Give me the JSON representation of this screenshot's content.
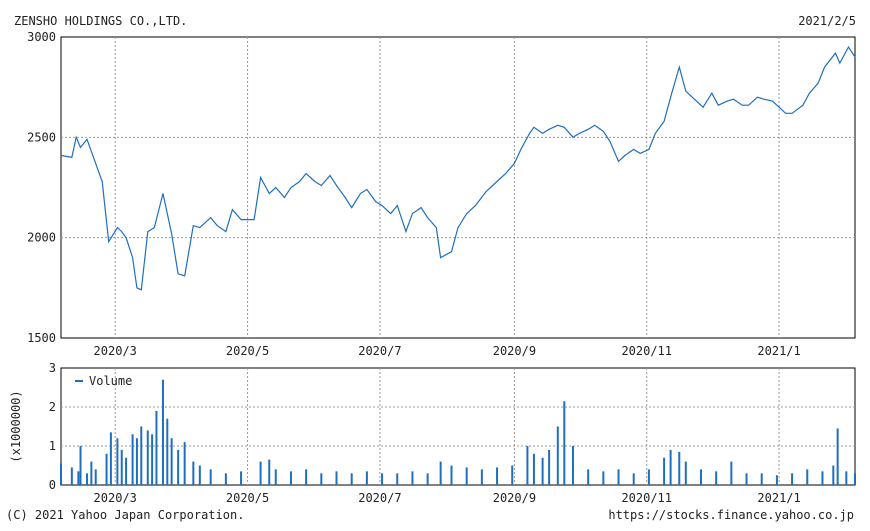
{
  "header": {
    "company": "ZENSHO HOLDINGS CO.,LTD.",
    "date": "2021/2/5"
  },
  "footer": {
    "copyright": "(C) 2021 Yahoo Japan Corporation.",
    "url": "https://stocks.finance.yahoo.co.jp"
  },
  "colors": {
    "line": "#1f6fc0",
    "bar": "#1f6fc0",
    "grid": "#9a9a9a",
    "axis": "#000000"
  },
  "chart_data": [
    {
      "type": "line",
      "title": "",
      "xlabel": "",
      "ylabel": "",
      "grid": true,
      "ylim": [
        1500,
        3000
      ],
      "yticks": [
        1500,
        2000,
        2500,
        3000
      ],
      "xticks": [
        "2020/3",
        "2020/5",
        "2020/7",
        "2020/9",
        "2020/11",
        "2021/1"
      ],
      "x_range": [
        "2020-02-05",
        "2021-02-05"
      ],
      "series": [
        {
          "values": [
            [
              "2020-02-05",
              2410
            ],
            [
              "2020-02-10",
              2400
            ],
            [
              "2020-02-12",
              2500
            ],
            [
              "2020-02-14",
              2450
            ],
            [
              "2020-02-17",
              2490
            ],
            [
              "2020-02-20",
              2400
            ],
            [
              "2020-02-24",
              2280
            ],
            [
              "2020-02-27",
              1980
            ],
            [
              "2020-03-02",
              2050
            ],
            [
              "2020-03-04",
              2030
            ],
            [
              "2020-03-06",
              2000
            ],
            [
              "2020-03-09",
              1900
            ],
            [
              "2020-03-11",
              1750
            ],
            [
              "2020-03-13",
              1740
            ],
            [
              "2020-03-16",
              2030
            ],
            [
              "2020-03-19",
              2050
            ],
            [
              "2020-03-23",
              2220
            ],
            [
              "2020-03-25",
              2120
            ],
            [
              "2020-03-27",
              2020
            ],
            [
              "2020-03-30",
              1820
            ],
            [
              "2020-04-02",
              1810
            ],
            [
              "2020-04-06",
              2060
            ],
            [
              "2020-04-09",
              2050
            ],
            [
              "2020-04-14",
              2100
            ],
            [
              "2020-04-17",
              2060
            ],
            [
              "2020-04-21",
              2030
            ],
            [
              "2020-04-24",
              2140
            ],
            [
              "2020-04-28",
              2090
            ],
            [
              "2020-05-01",
              2090
            ],
            [
              "2020-05-04",
              2090
            ],
            [
              "2020-05-07",
              2300
            ],
            [
              "2020-05-11",
              2220
            ],
            [
              "2020-05-14",
              2250
            ],
            [
              "2020-05-18",
              2200
            ],
            [
              "2020-05-21",
              2250
            ],
            [
              "2020-05-25",
              2280
            ],
            [
              "2020-05-28",
              2320
            ],
            [
              "2020-06-01",
              2280
            ],
            [
              "2020-06-04",
              2260
            ],
            [
              "2020-06-08",
              2310
            ],
            [
              "2020-06-11",
              2260
            ],
            [
              "2020-06-15",
              2200
            ],
            [
              "2020-06-18",
              2150
            ],
            [
              "2020-06-22",
              2220
            ],
            [
              "2020-06-25",
              2240
            ],
            [
              "2020-06-29",
              2180
            ],
            [
              "2020-07-02",
              2160
            ],
            [
              "2020-07-06",
              2120
            ],
            [
              "2020-07-09",
              2160
            ],
            [
              "2020-07-13",
              2030
            ],
            [
              "2020-07-16",
              2120
            ],
            [
              "2020-07-20",
              2150
            ],
            [
              "2020-07-23",
              2100
            ],
            [
              "2020-07-27",
              2050
            ],
            [
              "2020-07-29",
              1900
            ],
            [
              "2020-08-03",
              1930
            ],
            [
              "2020-08-06",
              2050
            ],
            [
              "2020-08-10",
              2120
            ],
            [
              "2020-08-14",
              2160
            ],
            [
              "2020-08-19",
              2230
            ],
            [
              "2020-08-24",
              2280
            ],
            [
              "2020-08-28",
              2320
            ],
            [
              "2020-09-01",
              2370
            ],
            [
              "2020-09-04",
              2440
            ],
            [
              "2020-09-08",
              2520
            ],
            [
              "2020-09-10",
              2550
            ],
            [
              "2020-09-14",
              2520
            ],
            [
              "2020-09-17",
              2540
            ],
            [
              "2020-09-21",
              2560
            ],
            [
              "2020-09-24",
              2550
            ],
            [
              "2020-09-28",
              2500
            ],
            [
              "2020-10-01",
              2520
            ],
            [
              "2020-10-05",
              2540
            ],
            [
              "2020-10-08",
              2560
            ],
            [
              "2020-10-12",
              2530
            ],
            [
              "2020-10-15",
              2480
            ],
            [
              "2020-10-19",
              2380
            ],
            [
              "2020-10-22",
              2410
            ],
            [
              "2020-10-26",
              2440
            ],
            [
              "2020-10-29",
              2420
            ],
            [
              "2020-11-02",
              2440
            ],
            [
              "2020-11-05",
              2520
            ],
            [
              "2020-11-09",
              2580
            ],
            [
              "2020-11-12",
              2700
            ],
            [
              "2020-11-16",
              2850
            ],
            [
              "2020-11-19",
              2730
            ],
            [
              "2020-11-24",
              2680
            ],
            [
              "2020-11-27",
              2650
            ],
            [
              "2020-12-01",
              2720
            ],
            [
              "2020-12-04",
              2660
            ],
            [
              "2020-12-08",
              2680
            ],
            [
              "2020-12-11",
              2690
            ],
            [
              "2020-12-15",
              2660
            ],
            [
              "2020-12-18",
              2660
            ],
            [
              "2020-12-22",
              2700
            ],
            [
              "2020-12-25",
              2690
            ],
            [
              "2020-12-29",
              2680
            ],
            [
              "2021-01-04",
              2620
            ],
            [
              "2021-01-07",
              2620
            ],
            [
              "2021-01-12",
              2660
            ],
            [
              "2021-01-15",
              2720
            ],
            [
              "2021-01-19",
              2770
            ],
            [
              "2021-01-22",
              2850
            ],
            [
              "2021-01-27",
              2920
            ],
            [
              "2021-01-29",
              2870
            ],
            [
              "2021-02-02",
              2950
            ],
            [
              "2021-02-05",
              2900
            ]
          ]
        }
      ]
    },
    {
      "type": "bar",
      "title": "",
      "ylabel": "(x1000000)",
      "ylim": [
        0,
        3
      ],
      "yticks": [
        0,
        1,
        2,
        3
      ],
      "legend": [
        "Volume"
      ],
      "legend_position": "top-left",
      "xticks": [
        "2020/3",
        "2020/5",
        "2020/7",
        "2020/9",
        "2020/11",
        "2021/1"
      ],
      "series": [
        {
          "name": "Volume",
          "values": [
            [
              "2020-02-05",
              0.55
            ],
            [
              "2020-02-10",
              0.45
            ],
            [
              "2020-02-13",
              0.35
            ],
            [
              "2020-02-14",
              1.0
            ],
            [
              "2020-02-17",
              0.3
            ],
            [
              "2020-02-19",
              0.6
            ],
            [
              "2020-02-21",
              0.4
            ],
            [
              "2020-02-26",
              0.8
            ],
            [
              "2020-02-28",
              1.35
            ],
            [
              "2020-03-02",
              1.2
            ],
            [
              "2020-03-04",
              0.9
            ],
            [
              "2020-03-06",
              0.7
            ],
            [
              "2020-03-09",
              1.3
            ],
            [
              "2020-03-11",
              1.2
            ],
            [
              "2020-03-13",
              1.5
            ],
            [
              "2020-03-16",
              1.4
            ],
            [
              "2020-03-18",
              1.3
            ],
            [
              "2020-03-20",
              1.9
            ],
            [
              "2020-03-23",
              2.7
            ],
            [
              "2020-03-25",
              1.7
            ],
            [
              "2020-03-27",
              1.2
            ],
            [
              "2020-03-30",
              0.9
            ],
            [
              "2020-04-02",
              1.1
            ],
            [
              "2020-04-06",
              0.6
            ],
            [
              "2020-04-09",
              0.5
            ],
            [
              "2020-04-14",
              0.4
            ],
            [
              "2020-04-21",
              0.3
            ],
            [
              "2020-04-28",
              0.35
            ],
            [
              "2020-05-07",
              0.6
            ],
            [
              "2020-05-11",
              0.65
            ],
            [
              "2020-05-14",
              0.4
            ],
            [
              "2020-05-21",
              0.35
            ],
            [
              "2020-05-28",
              0.4
            ],
            [
              "2020-06-04",
              0.3
            ],
            [
              "2020-06-11",
              0.35
            ],
            [
              "2020-06-18",
              0.3
            ],
            [
              "2020-06-25",
              0.35
            ],
            [
              "2020-07-02",
              0.3
            ],
            [
              "2020-07-09",
              0.3
            ],
            [
              "2020-07-16",
              0.35
            ],
            [
              "2020-07-23",
              0.3
            ],
            [
              "2020-07-29",
              0.6
            ],
            [
              "2020-08-03",
              0.5
            ],
            [
              "2020-08-10",
              0.45
            ],
            [
              "2020-08-17",
              0.4
            ],
            [
              "2020-08-24",
              0.45
            ],
            [
              "2020-08-31",
              0.5
            ],
            [
              "2020-09-07",
              1.0
            ],
            [
              "2020-09-10",
              0.8
            ],
            [
              "2020-09-14",
              0.7
            ],
            [
              "2020-09-17",
              0.9
            ],
            [
              "2020-09-21",
              1.5
            ],
            [
              "2020-09-24",
              2.15
            ],
            [
              "2020-09-28",
              1.0
            ],
            [
              "2020-10-05",
              0.4
            ],
            [
              "2020-10-12",
              0.35
            ],
            [
              "2020-10-19",
              0.4
            ],
            [
              "2020-10-26",
              0.3
            ],
            [
              "2020-11-02",
              0.4
            ],
            [
              "2020-11-09",
              0.7
            ],
            [
              "2020-11-12",
              0.9
            ],
            [
              "2020-11-16",
              0.85
            ],
            [
              "2020-11-19",
              0.6
            ],
            [
              "2020-11-26",
              0.4
            ],
            [
              "2020-12-03",
              0.35
            ],
            [
              "2020-12-10",
              0.6
            ],
            [
              "2020-12-17",
              0.3
            ],
            [
              "2020-12-24",
              0.3
            ],
            [
              "2020-12-31",
              0.25
            ],
            [
              "2021-01-07",
              0.3
            ],
            [
              "2021-01-14",
              0.4
            ],
            [
              "2021-01-21",
              0.35
            ],
            [
              "2021-01-26",
              0.5
            ],
            [
              "2021-01-28",
              1.45
            ],
            [
              "2021-02-01",
              0.35
            ],
            [
              "2021-02-05",
              0.3
            ]
          ]
        }
      ]
    }
  ]
}
